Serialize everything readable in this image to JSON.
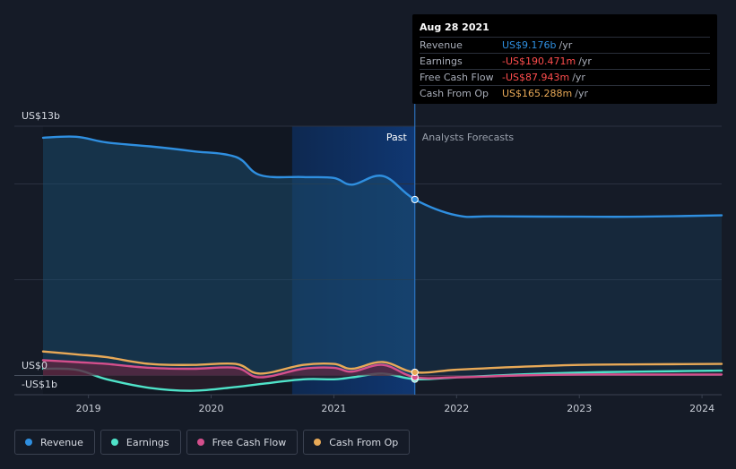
{
  "chart_data": {
    "type": "line",
    "x_range": [
      2018.63,
      2024.16
    ],
    "y_range": [
      -1,
      13
    ],
    "y_label_top": "US$13b",
    "y_label_zero": "US$0",
    "y_label_bottom": "-US$1b",
    "x_ticks": [
      2019,
      2020,
      2021,
      2022,
      2023,
      2024
    ],
    "x_tick_labels": [
      "2019",
      "2020",
      "2021",
      "2022",
      "2023",
      "2024"
    ],
    "divider_x": 2021.66,
    "highlight_start": 2020.66,
    "past_label": "Past",
    "forecast_label": "Analysts Forecasts",
    "series": [
      {
        "name": "Revenue",
        "color": "#2f8fe0",
        "area": true,
        "area_color": "#1b4a6b",
        "x": [
          2018.63,
          2018.9,
          2019.15,
          2019.5,
          2019.85,
          2020.2,
          2020.4,
          2020.75,
          2021.0,
          2021.15,
          2021.4,
          2021.66,
          2022.0,
          2022.3,
          2023.0,
          2023.5,
          2024.16
        ],
        "y": [
          12.4,
          12.45,
          12.15,
          11.95,
          11.7,
          11.4,
          10.45,
          10.35,
          10.3,
          9.95,
          10.4,
          9.176,
          8.35,
          8.3,
          8.28,
          8.28,
          8.35
        ]
      },
      {
        "name": "Earnings",
        "color": "#4fe3c9",
        "area": true,
        "area_color": "#2a1e2b",
        "x": [
          2018.63,
          2018.9,
          2019.15,
          2019.5,
          2019.85,
          2020.2,
          2020.4,
          2020.75,
          2021.0,
          2021.15,
          2021.4,
          2021.66,
          2022.0,
          2022.5,
          2023.0,
          2023.5,
          2024.16
        ],
        "y": [
          0.35,
          0.3,
          -0.2,
          -0.65,
          -0.8,
          -0.6,
          -0.45,
          -0.2,
          -0.2,
          -0.1,
          0.1,
          -0.1905,
          -0.1,
          0.05,
          0.15,
          0.2,
          0.25
        ]
      },
      {
        "name": "Free Cash Flow",
        "color": "#d44f8c",
        "area": true,
        "area_color": "#5a2740",
        "x": [
          2018.63,
          2018.9,
          2019.15,
          2019.5,
          2019.85,
          2020.2,
          2020.4,
          2020.75,
          2021.0,
          2021.15,
          2021.4,
          2021.66,
          2022.0,
          2022.5,
          2023.0,
          2023.5,
          2024.16
        ],
        "y": [
          0.8,
          0.7,
          0.6,
          0.4,
          0.35,
          0.4,
          -0.1,
          0.35,
          0.4,
          0.2,
          0.55,
          -0.0879,
          -0.1,
          0.0,
          0.05,
          0.05,
          0.05
        ]
      },
      {
        "name": "Cash From Op",
        "color": "#e8a957",
        "area": false,
        "x": [
          2018.63,
          2018.9,
          2019.15,
          2019.5,
          2019.85,
          2020.2,
          2020.4,
          2020.75,
          2021.0,
          2021.15,
          2021.4,
          2021.66,
          2022.0,
          2022.5,
          2023.0,
          2023.5,
          2024.16
        ],
        "y": [
          1.25,
          1.1,
          0.95,
          0.6,
          0.55,
          0.6,
          0.1,
          0.55,
          0.6,
          0.35,
          0.7,
          0.1653,
          0.3,
          0.45,
          0.55,
          0.58,
          0.6
        ]
      }
    ]
  },
  "tooltip": {
    "date": "Aug 28 2021",
    "rows": [
      {
        "label": "Revenue",
        "value": "US$9.176b",
        "unit": "/yr",
        "color": "#2f8fe0"
      },
      {
        "label": "Earnings",
        "value": "-US$190.471m",
        "unit": "/yr",
        "color": "#ff4d4d"
      },
      {
        "label": "Free Cash Flow",
        "value": "-US$87.943m",
        "unit": "/yr",
        "color": "#ff4d4d"
      },
      {
        "label": "Cash From Op",
        "value": "US$165.288m",
        "unit": "/yr",
        "color": "#e8a957"
      }
    ]
  },
  "legend": [
    {
      "label": "Revenue",
      "color": "#2f8fe0"
    },
    {
      "label": "Earnings",
      "color": "#4fe3c9"
    },
    {
      "label": "Free Cash Flow",
      "color": "#d44f8c"
    },
    {
      "label": "Cash From Op",
      "color": "#e8a957"
    }
  ]
}
